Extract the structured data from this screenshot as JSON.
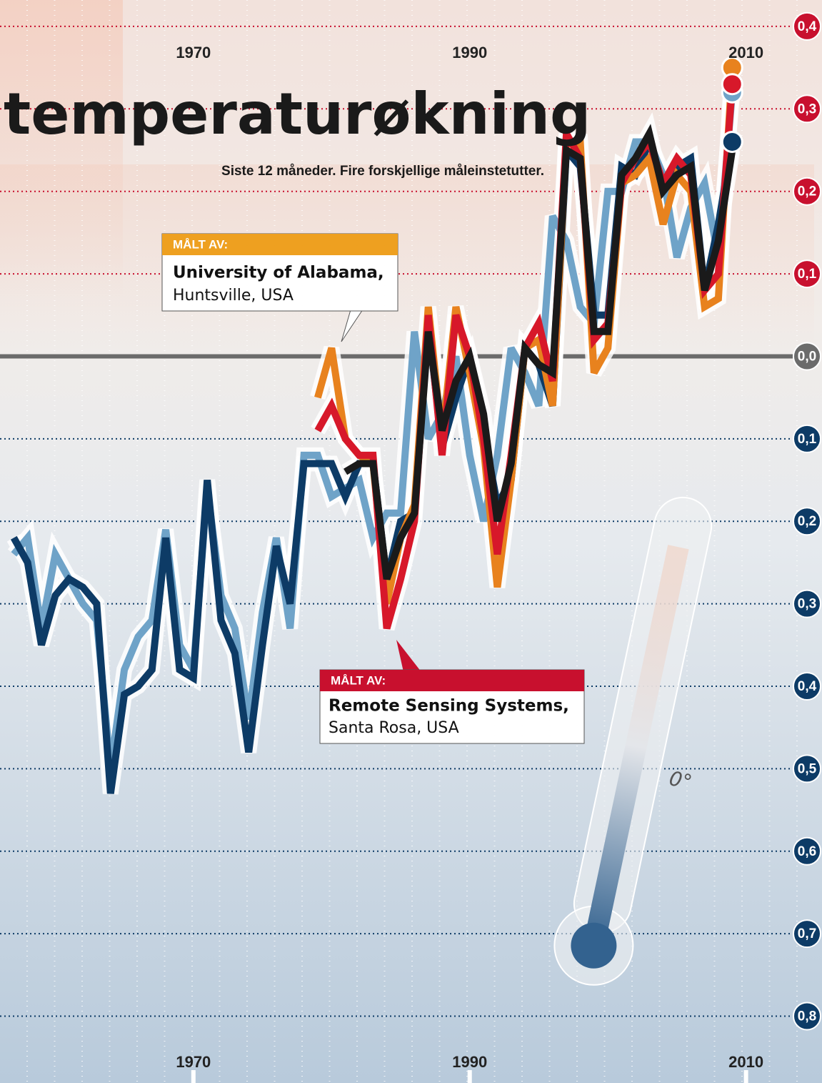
{
  "chart_data": {
    "type": "line",
    "title": "temperaturøkning",
    "subtitle": "Siste 12 måneder. Fire forskjellige måleinstetutter.",
    "x": [
      1957,
      1958,
      1959,
      1960,
      1961,
      1962,
      1963,
      1964,
      1965,
      1966,
      1967,
      1968,
      1969,
      1970,
      1971,
      1972,
      1973,
      1974,
      1975,
      1976,
      1977,
      1978,
      1979,
      1980,
      1981,
      1982,
      1983,
      1984,
      1985,
      1986,
      1987,
      1988,
      1989,
      1990,
      1991,
      1992,
      1993,
      1994,
      1995,
      1996,
      1997,
      1998,
      1999,
      2000,
      2001,
      2002,
      2003,
      2004,
      2005,
      2006,
      2007,
      2008,
      2009
    ],
    "xlim": [
      1956,
      2015.5
    ],
    "xticks": [
      1970,
      1990,
      2010
    ],
    "ylim": [
      -0.881,
      0.432
    ],
    "yticks": [
      {
        "value": 0.4,
        "label": "0,4"
      },
      {
        "value": 0.3,
        "label": "0,3"
      },
      {
        "value": 0.2,
        "label": "0,2"
      },
      {
        "value": 0.1,
        "label": "0,1"
      },
      {
        "value": 0,
        "label": "0,0"
      },
      {
        "value": -0.1,
        "label": "0,1"
      },
      {
        "value": -0.2,
        "label": "0,2"
      },
      {
        "value": -0.3,
        "label": "0,3"
      },
      {
        "value": -0.4,
        "label": "0,4"
      },
      {
        "value": -0.5,
        "label": "0,5"
      },
      {
        "value": -0.6,
        "label": "0,6"
      },
      {
        "value": -0.7,
        "label": "0,7"
      },
      {
        "value": -0.8,
        "label": "0,8"
      }
    ],
    "grid": true,
    "positive_color": "#c8102e",
    "negative_color": "#0d3b66",
    "zero_color": "#6b6b6b",
    "series": [
      {
        "color": "#6fa3c8",
        "marker_last": true,
        "values": [
          -0.24,
          -0.22,
          -0.33,
          -0.24,
          -0.27,
          -0.3,
          -0.32,
          -0.5,
          -0.38,
          -0.34,
          -0.32,
          -0.21,
          -0.35,
          -0.38,
          -0.16,
          -0.29,
          -0.33,
          -0.44,
          -0.31,
          -0.22,
          -0.33,
          -0.12,
          -0.12,
          -0.17,
          -0.16,
          -0.15,
          -0.22,
          -0.19,
          -0.19,
          0.03,
          -0.1,
          -0.07,
          0.0,
          -0.12,
          -0.2,
          -0.12,
          0.01,
          -0.02,
          -0.06,
          0.17,
          0.14,
          0.06,
          0.04,
          0.2,
          0.2,
          0.26,
          0.26,
          0.22,
          0.12,
          0.18,
          0.21,
          0.12,
          0.32
        ]
      },
      {
        "color": "#0d3b66",
        "marker_last": true,
        "values": [
          -0.22,
          -0.25,
          -0.35,
          -0.29,
          -0.27,
          -0.28,
          -0.3,
          -0.53,
          -0.41,
          -0.4,
          -0.38,
          -0.22,
          -0.38,
          -0.39,
          -0.15,
          -0.32,
          -0.36,
          -0.48,
          -0.35,
          -0.23,
          -0.3,
          -0.13,
          -0.13,
          -0.13,
          -0.17,
          -0.13,
          -0.13,
          -0.27,
          -0.2,
          -0.19,
          0.04,
          -0.11,
          -0.05,
          0.0,
          -0.09,
          -0.18,
          -0.15,
          0.01,
          -0.01,
          -0.06,
          0.25,
          0.23,
          0.05,
          0.05,
          0.23,
          0.22,
          0.26,
          0.21,
          0.23,
          0.24,
          0.08,
          0.16,
          0.26
        ]
      },
      {
        "color": "#e8821e",
        "marker_last": true,
        "values": [
          null,
          null,
          null,
          null,
          null,
          null,
          null,
          null,
          null,
          null,
          null,
          null,
          null,
          null,
          null,
          null,
          null,
          null,
          null,
          null,
          null,
          null,
          -0.05,
          0.01,
          -0.1,
          -0.12,
          -0.13,
          -0.3,
          -0.22,
          -0.18,
          0.06,
          -0.1,
          0.06,
          -0.02,
          -0.11,
          -0.28,
          -0.15,
          0.01,
          0.02,
          -0.06,
          0.26,
          0.26,
          -0.02,
          0.01,
          0.21,
          0.22,
          0.24,
          0.16,
          0.22,
          0.2,
          0.06,
          0.07,
          0.35
        ]
      },
      {
        "color": "#d7182a",
        "marker_last": true,
        "values": [
          null,
          null,
          null,
          null,
          null,
          null,
          null,
          null,
          null,
          null,
          null,
          null,
          null,
          null,
          null,
          null,
          null,
          null,
          null,
          null,
          null,
          null,
          -0.09,
          -0.06,
          -0.1,
          -0.12,
          -0.12,
          -0.33,
          -0.27,
          -0.2,
          0.05,
          -0.12,
          0.05,
          0.0,
          -0.1,
          -0.24,
          -0.12,
          0.01,
          0.04,
          -0.03,
          0.27,
          0.24,
          0.02,
          0.04,
          0.21,
          0.24,
          0.26,
          0.21,
          0.24,
          0.22,
          0.08,
          0.1,
          0.33
        ]
      },
      {
        "color": "#1a1a1a",
        "marker_last": false,
        "values": [
          null,
          null,
          null,
          null,
          null,
          null,
          null,
          null,
          null,
          null,
          null,
          null,
          null,
          null,
          null,
          null,
          null,
          null,
          null,
          null,
          null,
          null,
          null,
          null,
          -0.14,
          -0.13,
          -0.13,
          -0.27,
          -0.22,
          -0.19,
          0.03,
          -0.09,
          -0.03,
          0.0,
          -0.07,
          -0.2,
          -0.13,
          0.01,
          -0.01,
          -0.02,
          0.25,
          0.24,
          0.03,
          0.03,
          0.22,
          0.24,
          0.27,
          0.2,
          0.22,
          0.23,
          0.08,
          0.14,
          0.25
        ]
      }
    ],
    "annotations": [
      {
        "label": "MÅLT AV:",
        "name": "University of Alabama,",
        "place": "Huntsville, USA",
        "color": "#eea020"
      },
      {
        "label": "MÅLT AV:",
        "name": "Remote Sensing Systems,",
        "place": "Santa Rosa, USA",
        "color": "#c8102e"
      }
    ],
    "thermometer_label": "0°"
  }
}
